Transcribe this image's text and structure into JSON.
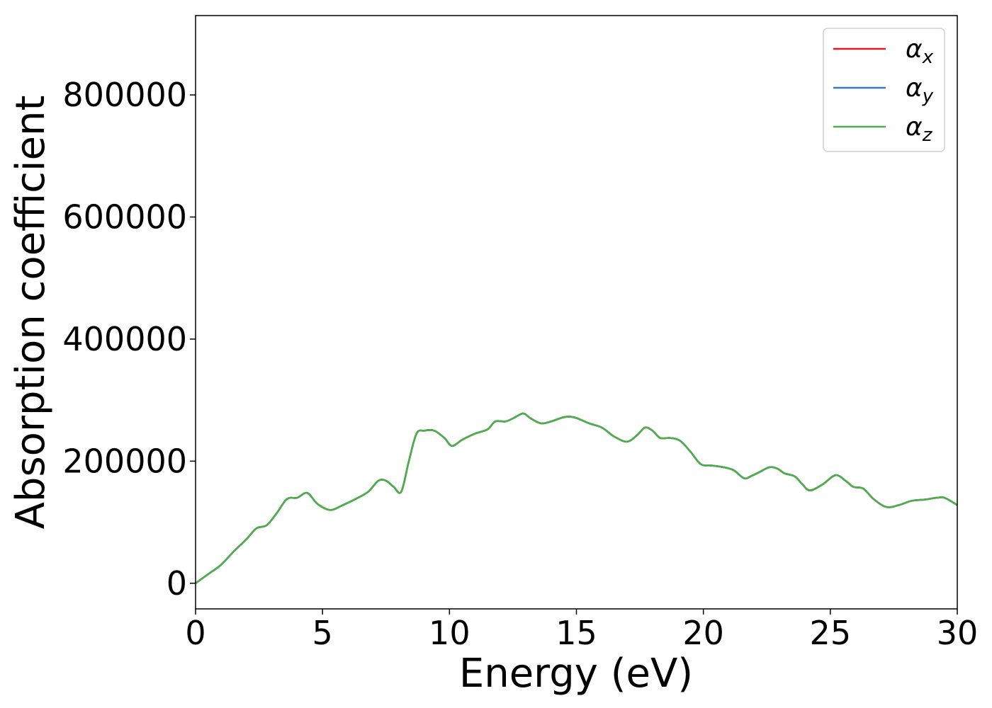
{
  "chart_data": {
    "type": "line",
    "title": "",
    "xlabel": "Energy (eV)",
    "ylabel": "Absorption coefficient",
    "xlim": [
      0,
      30
    ],
    "ylim": [
      -42000,
      930000
    ],
    "xticks": [
      0,
      5,
      10,
      15,
      20,
      25,
      30
    ],
    "xtick_labels": [
      "0",
      "5",
      "10",
      "15",
      "20",
      "25",
      "30"
    ],
    "yticks": [
      0,
      200000,
      400000,
      600000,
      800000
    ],
    "ytick_labels": [
      "0",
      "200000",
      "400000",
      "600000",
      "800000"
    ],
    "grid": false,
    "legend_position": "top-right",
    "x": [
      0,
      0.5,
      1,
      1.5,
      2,
      2.4,
      2.8,
      3.2,
      3.6,
      4,
      4.4,
      4.8,
      5.3,
      5.8,
      6.3,
      6.8,
      7.2,
      7.5,
      7.8,
      8.1,
      8.4,
      8.7,
      9.0,
      9.4,
      9.8,
      10.1,
      10.5,
      11.0,
      11.5,
      11.8,
      12.2,
      12.5,
      12.9,
      13.2,
      13.6,
      14.0,
      14.5,
      14.9,
      15.5,
      16.0,
      16.5,
      17.0,
      17.4,
      17.7,
      18.0,
      18.3,
      18.7,
      19.1,
      19.5,
      19.9,
      20.3,
      20.8,
      21.2,
      21.6,
      21.9,
      22.2,
      22.6,
      22.9,
      23.2,
      23.6,
      23.9,
      24.2,
      24.7,
      25.2,
      25.6,
      25.9,
      26.3,
      26.7,
      27.2,
      27.7,
      28.2,
      28.7,
      29.2,
      29.5,
      30.0
    ],
    "series": [
      {
        "name": "α_x",
        "color": "#e41a1c",
        "values": [
          0,
          15000,
          30000,
          52000,
          72000,
          90000,
          95000,
          115000,
          138000,
          140000,
          148000,
          130000,
          120000,
          128000,
          138000,
          150000,
          168000,
          168000,
          158000,
          150000,
          200000,
          245000,
          250000,
          250000,
          238000,
          225000,
          235000,
          245000,
          252000,
          265000,
          265000,
          270000,
          278000,
          270000,
          262000,
          265000,
          272000,
          272000,
          262000,
          255000,
          240000,
          232000,
          243000,
          255000,
          250000,
          238000,
          238000,
          233000,
          215000,
          195000,
          193000,
          190000,
          185000,
          172000,
          176000,
          182000,
          190000,
          188000,
          180000,
          175000,
          162000,
          152000,
          162000,
          177000,
          168000,
          158000,
          155000,
          138000,
          125000,
          128000,
          135000,
          137000,
          140000,
          140000,
          128000
        ]
      },
      {
        "name": "α_y",
        "color": "#377eb8",
        "values": [
          0,
          15000,
          30000,
          52000,
          72000,
          90000,
          95000,
          115000,
          138000,
          140000,
          148000,
          130000,
          120000,
          128000,
          138000,
          150000,
          168000,
          168000,
          158000,
          150000,
          200000,
          245000,
          250000,
          250000,
          238000,
          225000,
          235000,
          245000,
          252000,
          265000,
          265000,
          270000,
          278000,
          270000,
          262000,
          265000,
          272000,
          272000,
          262000,
          255000,
          240000,
          232000,
          243000,
          255000,
          250000,
          238000,
          238000,
          233000,
          215000,
          195000,
          193000,
          190000,
          185000,
          172000,
          176000,
          182000,
          190000,
          188000,
          180000,
          175000,
          162000,
          152000,
          162000,
          177000,
          168000,
          158000,
          155000,
          138000,
          125000,
          128000,
          135000,
          137000,
          140000,
          140000,
          128000
        ]
      },
      {
        "name": "α_z",
        "color": "#4daf4a",
        "values": [
          0,
          15000,
          30000,
          52000,
          72000,
          90000,
          95000,
          115000,
          138000,
          140000,
          148000,
          130000,
          120000,
          128000,
          138000,
          150000,
          168000,
          168000,
          158000,
          150000,
          200000,
          245000,
          250000,
          250000,
          238000,
          225000,
          235000,
          245000,
          252000,
          265000,
          265000,
          270000,
          278000,
          270000,
          262000,
          265000,
          272000,
          272000,
          262000,
          255000,
          240000,
          232000,
          243000,
          255000,
          250000,
          238000,
          238000,
          233000,
          215000,
          195000,
          193000,
          190000,
          185000,
          172000,
          176000,
          182000,
          190000,
          188000,
          180000,
          175000,
          162000,
          152000,
          162000,
          177000,
          168000,
          158000,
          155000,
          138000,
          125000,
          128000,
          135000,
          137000,
          140000,
          140000,
          128000
        ]
      }
    ],
    "legend": [
      {
        "symbol": "α",
        "sub": "x",
        "color": "#e41a1c"
      },
      {
        "symbol": "α",
        "sub": "y",
        "color": "#377eb8"
      },
      {
        "symbol": "α",
        "sub": "z",
        "color": "#4daf4a"
      }
    ]
  }
}
